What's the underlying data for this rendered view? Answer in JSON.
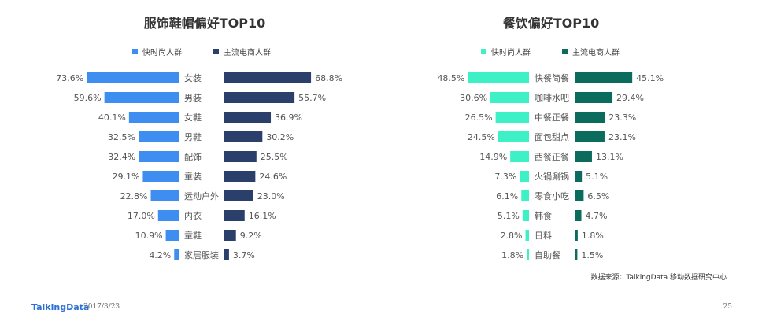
{
  "chart_data": [
    {
      "type": "bar",
      "title": "服饰鞋帽偏好TOP10",
      "orientation": "horizontal-butterfly",
      "categories": [
        "女装",
        "男装",
        "女鞋",
        "男鞋",
        "配饰",
        "童装",
        "运动户外",
        "内衣",
        "童鞋",
        "家居服装"
      ],
      "series": [
        {
          "name": "快时尚人群",
          "color": "#3d8ef0",
          "values": [
            73.6,
            59.6,
            40.1,
            32.5,
            32.4,
            29.1,
            22.8,
            17.0,
            10.9,
            4.2
          ]
        },
        {
          "name": "主流电商人群",
          "color": "#2b3f6b",
          "values": [
            68.8,
            55.7,
            36.9,
            30.2,
            25.5,
            24.6,
            23.0,
            16.1,
            9.2,
            3.7
          ]
        }
      ],
      "unit": "%"
    },
    {
      "type": "bar",
      "title": "餐饮偏好TOP10",
      "orientation": "horizontal-butterfly",
      "categories": [
        "快餐简餐",
        "咖啡水吧",
        "中餐正餐",
        "面包甜点",
        "西餐正餐",
        "火锅涮锅",
        "零食小吃",
        "韩食",
        "日料",
        "自助餐"
      ],
      "series": [
        {
          "name": "快时尚人群",
          "color": "#3ef0c6",
          "values": [
            48.5,
            30.6,
            26.5,
            24.5,
            14.9,
            7.3,
            6.1,
            5.1,
            2.8,
            1.8
          ]
        },
        {
          "name": "主流电商人群",
          "color": "#0b6b5c",
          "values": [
            45.1,
            29.4,
            23.3,
            23.1,
            13.1,
            5.1,
            6.5,
            4.7,
            1.8,
            1.5
          ]
        }
      ],
      "unit": "%"
    }
  ],
  "source": "数据来源：TalkingData 移动数据研究中心",
  "footer": {
    "brand": "TalkingData",
    "date": "2017/3/23",
    "page": "25"
  }
}
